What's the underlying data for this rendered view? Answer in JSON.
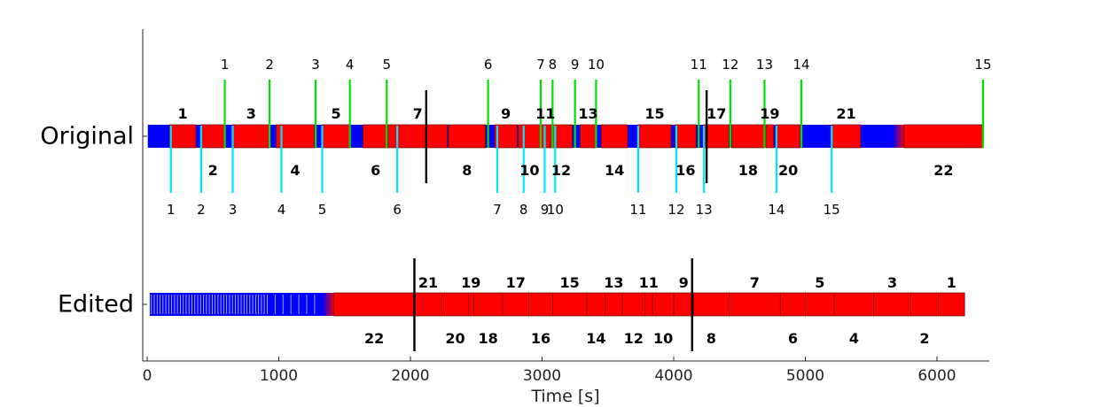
{
  "chart_data": {
    "type": "bar",
    "xlabel": "Time [s]",
    "xlim": [
      -30,
      6390
    ],
    "xticks": [
      0,
      1000,
      2000,
      3000,
      4000,
      5000,
      6000
    ],
    "rows": [
      "Original",
      "Edited"
    ],
    "colors": {
      "segment": "#ff0000",
      "background": "#0000ff",
      "marker_top": "#00e000",
      "marker_bottom": "#00e5ff",
      "divider": "#000000"
    },
    "original": {
      "blue_span": [
        5,
        5810
      ],
      "segments": [
        {
          "label": "1",
          "start": 170,
          "end": 370
        },
        {
          "label": "2",
          "start": 410,
          "end": 590
        },
        {
          "label": "3",
          "start": 650,
          "end": 930
        },
        {
          "label": "4",
          "start": 980,
          "end": 1270
        },
        {
          "label": "5",
          "start": 1330,
          "end": 1540
        },
        {
          "label": "6",
          "start": 1640,
          "end": 1830
        },
        {
          "label": "7",
          "start": 1830,
          "end": 2280
        },
        {
          "label": "8",
          "start": 2290,
          "end": 2570
        },
        {
          "label": "9",
          "start": 2640,
          "end": 2810
        },
        {
          "label": "10",
          "start": 2820,
          "end": 2990
        },
        {
          "label": "11",
          "start": 2990,
          "end": 3060
        },
        {
          "label": "12",
          "start": 3060,
          "end": 3230
        },
        {
          "label": "13",
          "start": 3290,
          "end": 3410
        },
        {
          "label": "14",
          "start": 3450,
          "end": 3650
        },
        {
          "label": "15",
          "start": 3730,
          "end": 3980
        },
        {
          "label": "16",
          "start": 4010,
          "end": 4170
        },
        {
          "label": "17",
          "start": 4230,
          "end": 4420
        },
        {
          "label": "18",
          "start": 4440,
          "end": 4690
        },
        {
          "label": "19",
          "start": 4700,
          "end": 4760
        },
        {
          "label": "20",
          "start": 4780,
          "end": 4960
        },
        {
          "label": "21",
          "start": 5200,
          "end": 5420
        },
        {
          "label": "22",
          "start": 5750,
          "end": 6350
        }
      ],
      "above_labels": [
        "1",
        "3",
        "5",
        "7",
        "9",
        "11",
        "13",
        "15",
        "17",
        "19",
        "21"
      ],
      "below_labels": [
        "2",
        "4",
        "6",
        "8",
        "10",
        "12",
        "14",
        "16",
        "18",
        "20",
        "22"
      ],
      "top_markers": [
        {
          "label": "1",
          "t": 590
        },
        {
          "label": "2",
          "t": 930
        },
        {
          "label": "3",
          "t": 1280
        },
        {
          "label": "4",
          "t": 1540
        },
        {
          "label": "5",
          "t": 1820
        },
        {
          "label": "6",
          "t": 2590
        },
        {
          "label": "7",
          "t": 2990
        },
        {
          "label": "8",
          "t": 3080
        },
        {
          "label": "9",
          "t": 3250
        },
        {
          "label": "10",
          "t": 3410
        },
        {
          "label": "11",
          "t": 4190
        },
        {
          "label": "12",
          "t": 4430
        },
        {
          "label": "13",
          "t": 4690
        },
        {
          "label": "14",
          "t": 4970
        },
        {
          "label": "15",
          "t": 6350
        }
      ],
      "bottom_markers": [
        {
          "label": "1",
          "t": 180
        },
        {
          "label": "2",
          "t": 410
        },
        {
          "label": "3",
          "t": 650
        },
        {
          "label": "4",
          "t": 1020
        },
        {
          "label": "5",
          "t": 1330
        },
        {
          "label": "6",
          "t": 1900
        },
        {
          "label": "7",
          "t": 2660
        },
        {
          "label": "8",
          "t": 2860
        },
        {
          "label": "9",
          "t": 3020
        },
        {
          "label": "10",
          "t": 3100
        },
        {
          "label": "11",
          "t": 3730
        },
        {
          "label": "12",
          "t": 4020
        },
        {
          "label": "13",
          "t": 4230
        },
        {
          "label": "14",
          "t": 4780
        },
        {
          "label": "15",
          "t": 5200
        }
      ],
      "dividers": [
        2120,
        4250
      ]
    },
    "edited": {
      "blue_span": [
        20,
        1440
      ],
      "segments": [
        {
          "label": "22",
          "start": 1420,
          "end": 2030
        },
        {
          "label": "21",
          "start": 2030,
          "end": 2240
        },
        {
          "label": "20",
          "start": 2240,
          "end": 2440
        },
        {
          "label": "19",
          "start": 2440,
          "end": 2480
        },
        {
          "label": "18",
          "start": 2480,
          "end": 2700
        },
        {
          "label": "17",
          "start": 2700,
          "end": 2900
        },
        {
          "label": "16",
          "start": 2900,
          "end": 3080
        },
        {
          "label": "15",
          "start": 3080,
          "end": 3340
        },
        {
          "label": "14",
          "start": 3340,
          "end": 3480
        },
        {
          "label": "13",
          "start": 3480,
          "end": 3610
        },
        {
          "label": "12",
          "start": 3610,
          "end": 3780
        },
        {
          "label": "11",
          "start": 3780,
          "end": 3840
        },
        {
          "label": "10",
          "start": 3840,
          "end": 4000
        },
        {
          "label": "9",
          "start": 4000,
          "end": 4150
        },
        {
          "label": "8",
          "start": 4150,
          "end": 4420
        },
        {
          "label": "7",
          "start": 4420,
          "end": 4810
        },
        {
          "label": "6",
          "start": 4810,
          "end": 5000
        },
        {
          "label": "5",
          "start": 5000,
          "end": 5220
        },
        {
          "label": "4",
          "start": 5220,
          "end": 5520
        },
        {
          "label": "3",
          "start": 5520,
          "end": 5800
        },
        {
          "label": "2",
          "start": 5800,
          "end": 6010
        },
        {
          "label": "1",
          "start": 6010,
          "end": 6210
        }
      ],
      "above_labels": [
        "21",
        "19",
        "17",
        "15",
        "13",
        "11",
        "9",
        "7",
        "5",
        "3",
        "1"
      ],
      "below_labels": [
        "22",
        "20",
        "18",
        "16",
        "14",
        "12",
        "10",
        "8",
        "6",
        "4",
        "2"
      ],
      "dividers": [
        2030,
        4140
      ]
    }
  }
}
